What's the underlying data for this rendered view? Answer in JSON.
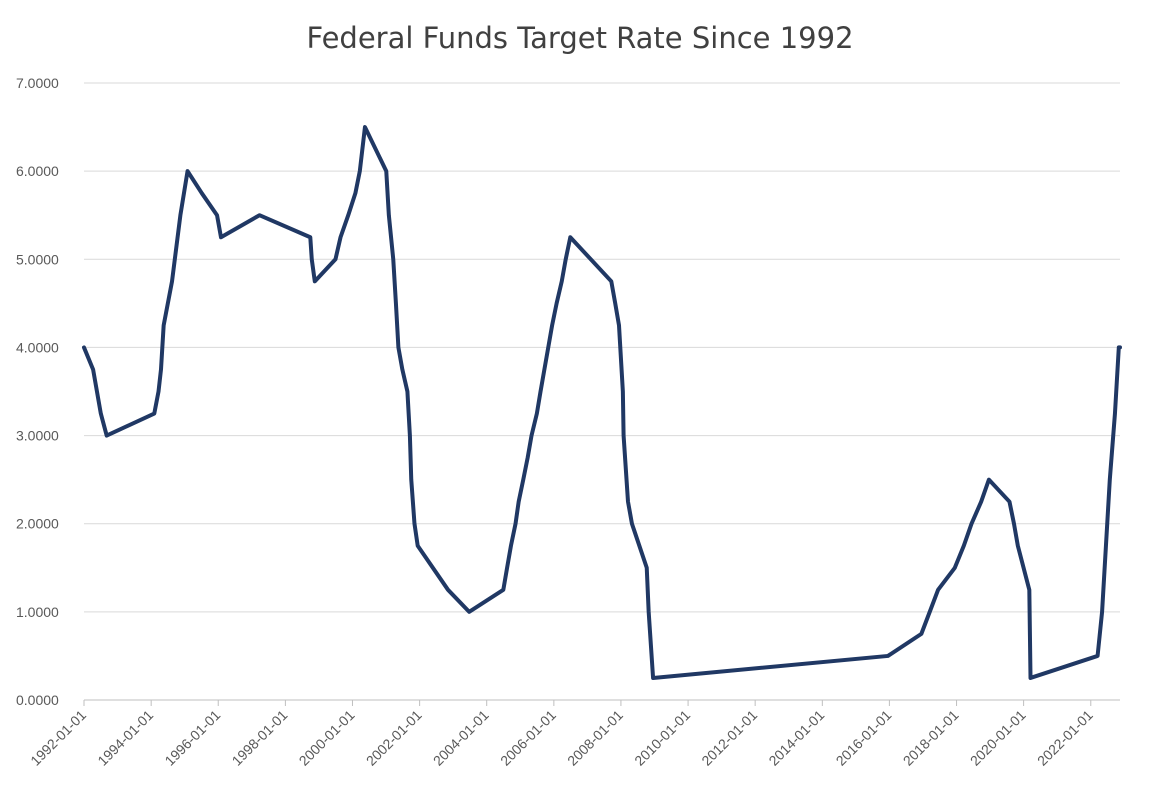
{
  "chart_data": {
    "type": "line",
    "title": "Federal Funds Target Rate Since 1992",
    "xlabel": "",
    "ylabel": "",
    "ylim": [
      0,
      7
    ],
    "xlim": [
      "1992-01-01",
      "2022-11-15"
    ],
    "grid": "horizontal",
    "legend": "none",
    "line_color": "#203864",
    "y_ticks": [
      "0.0000",
      "1.0000",
      "2.0000",
      "3.0000",
      "4.0000",
      "5.0000",
      "6.0000",
      "7.0000"
    ],
    "x_ticks": [
      "1992-01-01",
      "1994-01-01",
      "1996-01-01",
      "1998-01-01",
      "2000-01-01",
      "2002-01-01",
      "2004-01-01",
      "2006-01-01",
      "2008-01-01",
      "2010-01-01",
      "2012-01-01",
      "2014-01-01",
      "2016-01-01",
      "2018-01-01",
      "2020-01-01",
      "2022-01-01"
    ],
    "series": [
      {
        "values": [
          [
            "1992-01-01",
            4.0
          ],
          [
            "1992-04-09",
            3.75
          ],
          [
            "1992-07-02",
            3.25
          ],
          [
            "1992-09-04",
            3.0
          ],
          [
            "1994-02-04",
            3.25
          ],
          [
            "1994-03-22",
            3.5
          ],
          [
            "1994-04-18",
            3.75
          ],
          [
            "1994-05-17",
            4.25
          ],
          [
            "1994-08-16",
            4.75
          ],
          [
            "1994-11-15",
            5.5
          ],
          [
            "1995-02-01",
            6.0
          ],
          [
            "1995-07-06",
            5.75
          ],
          [
            "1995-12-19",
            5.5
          ],
          [
            "1996-01-31",
            5.25
          ],
          [
            "1997-03-25",
            5.5
          ],
          [
            "1998-09-29",
            5.25
          ],
          [
            "1998-10-15",
            5.0
          ],
          [
            "1998-11-17",
            4.75
          ],
          [
            "1999-06-30",
            5.0
          ],
          [
            "1999-08-24",
            5.25
          ],
          [
            "1999-11-16",
            5.5
          ],
          [
            "2000-02-02",
            5.75
          ],
          [
            "2000-03-21",
            6.0
          ],
          [
            "2000-05-16",
            6.5
          ],
          [
            "2001-01-03",
            6.0
          ],
          [
            "2001-01-31",
            5.5
          ],
          [
            "2001-03-20",
            5.0
          ],
          [
            "2001-04-18",
            4.5
          ],
          [
            "2001-05-15",
            4.0
          ],
          [
            "2001-06-27",
            3.75
          ],
          [
            "2001-08-21",
            3.5
          ],
          [
            "2001-09-17",
            3.0
          ],
          [
            "2001-10-02",
            2.5
          ],
          [
            "2001-11-06",
            2.0
          ],
          [
            "2001-12-11",
            1.75
          ],
          [
            "2002-11-06",
            1.25
          ],
          [
            "2003-06-25",
            1.0
          ],
          [
            "2004-06-30",
            1.25
          ],
          [
            "2004-08-10",
            1.5
          ],
          [
            "2004-09-21",
            1.75
          ],
          [
            "2004-11-10",
            2.0
          ],
          [
            "2004-12-14",
            2.25
          ],
          [
            "2005-02-02",
            2.5
          ],
          [
            "2005-03-22",
            2.75
          ],
          [
            "2005-05-03",
            3.0
          ],
          [
            "2005-06-30",
            3.25
          ],
          [
            "2005-08-09",
            3.5
          ],
          [
            "2005-09-20",
            3.75
          ],
          [
            "2005-11-01",
            4.0
          ],
          [
            "2005-12-13",
            4.25
          ],
          [
            "2006-01-31",
            4.5
          ],
          [
            "2006-03-28",
            4.75
          ],
          [
            "2006-05-10",
            5.0
          ],
          [
            "2006-06-29",
            5.25
          ],
          [
            "2007-09-18",
            4.75
          ],
          [
            "2007-10-31",
            4.5
          ],
          [
            "2007-12-11",
            4.25
          ],
          [
            "2008-01-22",
            3.5
          ],
          [
            "2008-01-30",
            3.0
          ],
          [
            "2008-03-18",
            2.25
          ],
          [
            "2008-04-30",
            2.0
          ],
          [
            "2008-10-08",
            1.5
          ],
          [
            "2008-10-29",
            1.0
          ],
          [
            "2008-12-16",
            0.25
          ],
          [
            "2015-12-16",
            0.5
          ],
          [
            "2016-12-14",
            0.75
          ],
          [
            "2017-03-15",
            1.0
          ],
          [
            "2017-06-14",
            1.25
          ],
          [
            "2017-12-13",
            1.5
          ],
          [
            "2018-03-21",
            1.75
          ],
          [
            "2018-06-13",
            2.0
          ],
          [
            "2018-09-26",
            2.25
          ],
          [
            "2018-12-19",
            2.5
          ],
          [
            "2019-07-31",
            2.25
          ],
          [
            "2019-09-18",
            2.0
          ],
          [
            "2019-10-30",
            1.75
          ],
          [
            "2020-03-03",
            1.25
          ],
          [
            "2020-03-16",
            0.25
          ],
          [
            "2022-03-16",
            0.5
          ],
          [
            "2022-05-04",
            1.0
          ],
          [
            "2022-06-15",
            1.75
          ],
          [
            "2022-07-27",
            2.5
          ],
          [
            "2022-09-21",
            3.25
          ],
          [
            "2022-11-02",
            4.0
          ],
          [
            "2022-11-15",
            4.0
          ]
        ]
      }
    ]
  }
}
